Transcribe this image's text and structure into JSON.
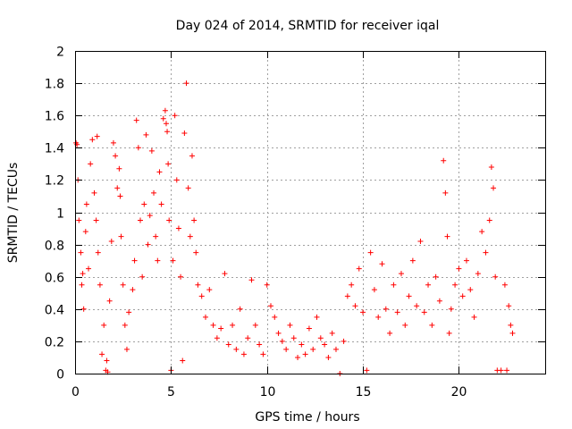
{
  "chart_data": {
    "type": "scatter",
    "title": "Day 024 of 2014, SRMTID for receiver iqal",
    "xlabel": "GPS time / hours",
    "ylabel": "SRMTID / TECUs",
    "xlim": [
      0,
      24.5
    ],
    "ylim": [
      0,
      2
    ],
    "x_ticks": [
      0,
      5,
      10,
      15,
      20
    ],
    "x_tick_labels": [
      "0",
      "5",
      "10",
      "15",
      "20"
    ],
    "y_ticks": [
      0,
      0.2,
      0.4,
      0.6,
      0.8,
      1,
      1.2,
      1.4,
      1.6,
      1.8,
      2
    ],
    "y_tick_labels": [
      "0",
      "0.2",
      "0.4",
      "0.6",
      "0.8",
      "1",
      "1.2",
      "1.4",
      "1.6",
      "1.8",
      "2"
    ],
    "grid": true,
    "marker": "+",
    "color": "#ff0000",
    "series": [
      {
        "name": "SRMTID",
        "points": [
          [
            0.05,
            1.43
          ],
          [
            0.1,
            1.42
          ],
          [
            0.15,
            1.2
          ],
          [
            0.2,
            0.95
          ],
          [
            0.3,
            0.75
          ],
          [
            0.35,
            0.55
          ],
          [
            0.4,
            0.62
          ],
          [
            0.45,
            0.4
          ],
          [
            0.55,
            0.88
          ],
          [
            0.6,
            1.05
          ],
          [
            0.7,
            0.65
          ],
          [
            0.8,
            1.3
          ],
          [
            0.9,
            1.45
          ],
          [
            1.0,
            1.12
          ],
          [
            1.1,
            0.95
          ],
          [
            1.15,
            1.47
          ],
          [
            1.2,
            0.75
          ],
          [
            1.3,
            0.55
          ],
          [
            1.4,
            0.12
          ],
          [
            1.5,
            0.3
          ],
          [
            1.6,
            0.02
          ],
          [
            1.65,
            0.08
          ],
          [
            1.7,
            0.01
          ],
          [
            1.8,
            0.45
          ],
          [
            1.9,
            0.82
          ],
          [
            2.0,
            1.43
          ],
          [
            2.1,
            1.35
          ],
          [
            2.2,
            1.15
          ],
          [
            2.3,
            1.27
          ],
          [
            2.35,
            1.1
          ],
          [
            2.4,
            0.85
          ],
          [
            2.5,
            0.55
          ],
          [
            2.6,
            0.3
          ],
          [
            2.7,
            0.15
          ],
          [
            2.8,
            0.38
          ],
          [
            3.0,
            0.52
          ],
          [
            3.1,
            0.7
          ],
          [
            3.2,
            1.57
          ],
          [
            3.3,
            1.4
          ],
          [
            3.4,
            0.95
          ],
          [
            3.5,
            0.6
          ],
          [
            3.6,
            1.05
          ],
          [
            3.7,
            1.48
          ],
          [
            3.8,
            0.8
          ],
          [
            3.9,
            0.98
          ],
          [
            4.0,
            1.38
          ],
          [
            4.1,
            1.12
          ],
          [
            4.2,
            0.85
          ],
          [
            4.3,
            0.7
          ],
          [
            4.4,
            1.25
          ],
          [
            4.5,
            1.05
          ],
          [
            4.6,
            1.58
          ],
          [
            4.7,
            1.63
          ],
          [
            4.75,
            1.55
          ],
          [
            4.8,
            1.5
          ],
          [
            4.85,
            1.3
          ],
          [
            4.9,
            0.95
          ],
          [
            5.0,
            0.02
          ],
          [
            5.1,
            0.7
          ],
          [
            5.2,
            1.6
          ],
          [
            5.3,
            1.2
          ],
          [
            5.4,
            0.9
          ],
          [
            5.5,
            0.6
          ],
          [
            5.6,
            0.08
          ],
          [
            5.7,
            1.49
          ],
          [
            5.8,
            1.8
          ],
          [
            5.9,
            1.15
          ],
          [
            6.0,
            0.85
          ],
          [
            6.1,
            1.35
          ],
          [
            6.2,
            0.95
          ],
          [
            6.3,
            0.75
          ],
          [
            6.4,
            0.55
          ],
          [
            6.6,
            0.48
          ],
          [
            6.8,
            0.35
          ],
          [
            7.0,
            0.52
          ],
          [
            7.2,
            0.3
          ],
          [
            7.4,
            0.22
          ],
          [
            7.6,
            0.28
          ],
          [
            7.8,
            0.62
          ],
          [
            8.0,
            0.18
          ],
          [
            8.2,
            0.3
          ],
          [
            8.4,
            0.15
          ],
          [
            8.6,
            0.4
          ],
          [
            8.8,
            0.12
          ],
          [
            9.0,
            0.22
          ],
          [
            9.2,
            0.58
          ],
          [
            9.4,
            0.3
          ],
          [
            9.6,
            0.18
          ],
          [
            9.8,
            0.12
          ],
          [
            10.0,
            0.55
          ],
          [
            10.2,
            0.42
          ],
          [
            10.4,
            0.35
          ],
          [
            10.6,
            0.25
          ],
          [
            10.8,
            0.2
          ],
          [
            11.0,
            0.15
          ],
          [
            11.2,
            0.3
          ],
          [
            11.4,
            0.22
          ],
          [
            11.6,
            0.1
          ],
          [
            11.8,
            0.18
          ],
          [
            12.0,
            0.12
          ],
          [
            12.2,
            0.28
          ],
          [
            12.4,
            0.15
          ],
          [
            12.6,
            0.35
          ],
          [
            12.8,
            0.22
          ],
          [
            13.0,
            0.18
          ],
          [
            13.2,
            0.1
          ],
          [
            13.4,
            0.25
          ],
          [
            13.6,
            0.15
          ],
          [
            13.8,
            0.0
          ],
          [
            14.0,
            0.2
          ],
          [
            14.2,
            0.48
          ],
          [
            14.4,
            0.55
          ],
          [
            14.6,
            0.42
          ],
          [
            14.8,
            0.65
          ],
          [
            15.0,
            0.38
          ],
          [
            15.2,
            0.02
          ],
          [
            15.4,
            0.75
          ],
          [
            15.6,
            0.52
          ],
          [
            15.8,
            0.35
          ],
          [
            16.0,
            0.68
          ],
          [
            16.2,
            0.4
          ],
          [
            16.4,
            0.25
          ],
          [
            16.6,
            0.55
          ],
          [
            16.8,
            0.38
          ],
          [
            17.0,
            0.62
          ],
          [
            17.2,
            0.3
          ],
          [
            17.4,
            0.48
          ],
          [
            17.6,
            0.7
          ],
          [
            17.8,
            0.42
          ],
          [
            18.0,
            0.82
          ],
          [
            18.2,
            0.38
          ],
          [
            18.4,
            0.55
          ],
          [
            18.6,
            0.3
          ],
          [
            18.8,
            0.6
          ],
          [
            19.0,
            0.45
          ],
          [
            19.2,
            1.32
          ],
          [
            19.3,
            1.12
          ],
          [
            19.4,
            0.85
          ],
          [
            19.5,
            0.25
          ],
          [
            19.6,
            0.4
          ],
          [
            19.8,
            0.55
          ],
          [
            20.0,
            0.65
          ],
          [
            20.2,
            0.48
          ],
          [
            20.4,
            0.7
          ],
          [
            20.6,
            0.52
          ],
          [
            20.8,
            0.35
          ],
          [
            21.0,
            0.62
          ],
          [
            21.2,
            0.88
          ],
          [
            21.4,
            0.75
          ],
          [
            21.6,
            0.95
          ],
          [
            21.7,
            1.28
          ],
          [
            21.8,
            1.15
          ],
          [
            21.9,
            0.6
          ],
          [
            22.0,
            0.02
          ],
          [
            22.2,
            0.02
          ],
          [
            22.4,
            0.55
          ],
          [
            22.5,
            0.02
          ],
          [
            22.6,
            0.42
          ],
          [
            22.7,
            0.3
          ],
          [
            22.8,
            0.25
          ]
        ]
      }
    ]
  }
}
